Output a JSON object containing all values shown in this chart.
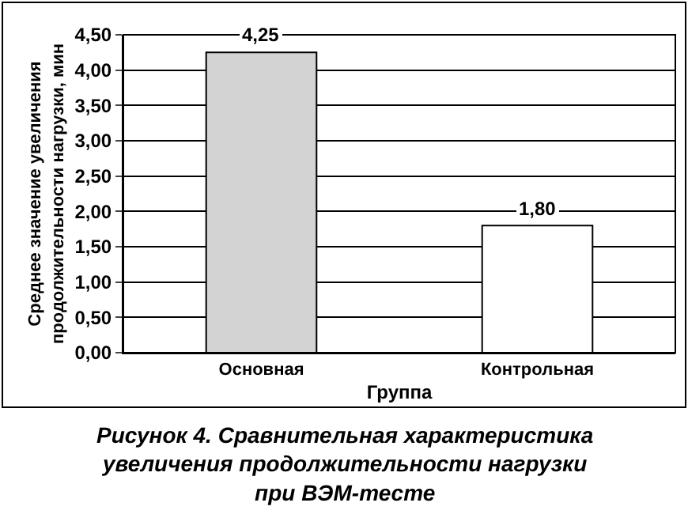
{
  "chart_data": {
    "type": "bar",
    "categories": [
      "Основная",
      "Контрольная"
    ],
    "values": [
      4.25,
      1.8
    ],
    "colors": [
      "#d3d3d3",
      "#ffffff"
    ],
    "value_labels": [
      "4,25",
      "1,80"
    ],
    "ylim": [
      0,
      4.5
    ],
    "yticks": [
      {
        "value": 0,
        "label": "0,00"
      },
      {
        "value": 0.5,
        "label": "0,50"
      },
      {
        "value": 1,
        "label": "1,00"
      },
      {
        "value": 1.5,
        "label": "1,50"
      },
      {
        "value": 2,
        "label": "2,00"
      },
      {
        "value": 2.5,
        "label": "2,50"
      },
      {
        "value": 3,
        "label": "3,00"
      },
      {
        "value": 3.5,
        "label": "3,50"
      },
      {
        "value": 4,
        "label": "4,00"
      },
      {
        "value": 4.5,
        "label": "4,50"
      }
    ],
    "xlabel": "Группа",
    "ylabel": "Среднее значение увеличения\nпродолжительности нагрузки, мин",
    "annotations": [
      "Рисунок 4. Сравнительная характеристика\nувеличения продолжительности нагрузки\nпри ВЭМ-тесте"
    ],
    "grid": "y"
  }
}
